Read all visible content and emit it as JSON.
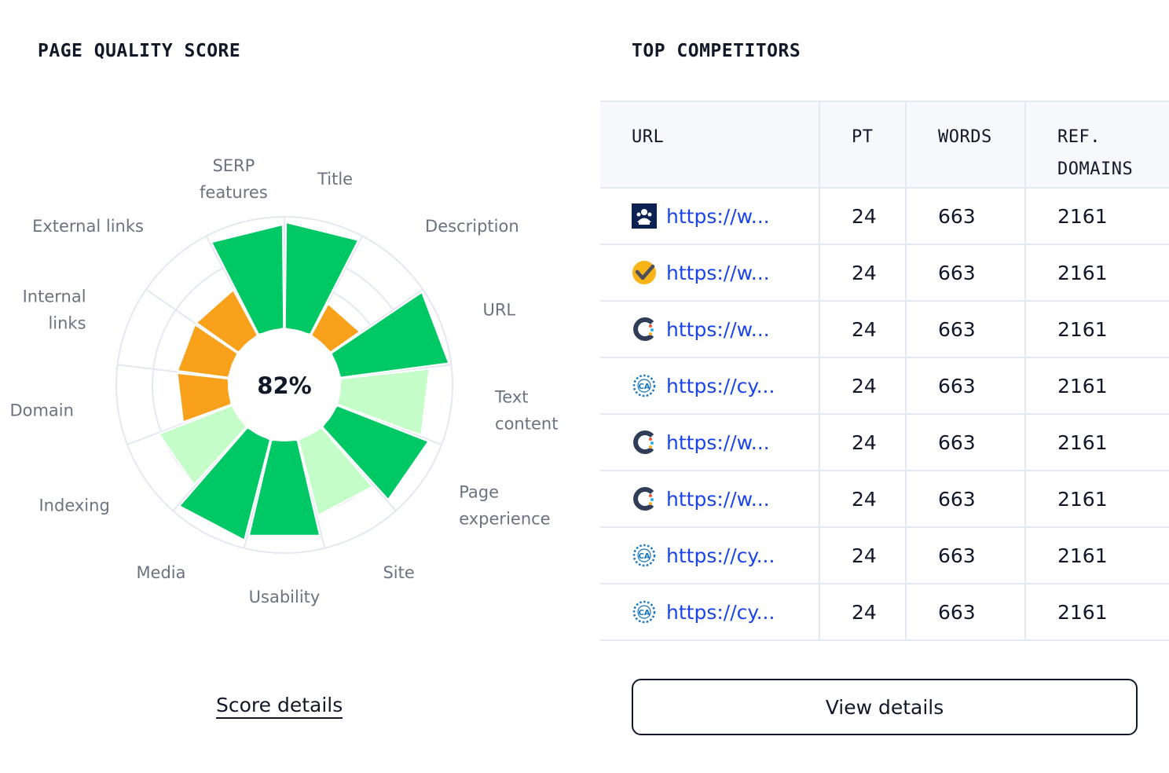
{
  "quality": {
    "title": "PAGE QUALITY SCORE",
    "score": "82%",
    "link": "Score details"
  },
  "chart_data": {
    "type": "polar-bar",
    "center_label": "82%",
    "colors": {
      "high": "#00c864",
      "medium": "#c4fdc7",
      "low": "#f9a11b",
      "grid": "#e3e8f1"
    },
    "categories": [
      {
        "label": [
          "Title"
        ],
        "value": 0.95,
        "level": "high"
      },
      {
        "label": [
          "Description"
        ],
        "value": 0.32,
        "level": "low"
      },
      {
        "label": [
          "URL"
        ],
        "value": 0.98,
        "level": "high"
      },
      {
        "label": [
          "Text",
          "content"
        ],
        "value": 0.8,
        "level": "medium"
      },
      {
        "label": [
          "Page",
          "experience"
        ],
        "value": 0.88,
        "level": "high"
      },
      {
        "label": [
          "Site"
        ],
        "value": 0.7,
        "level": "medium"
      },
      {
        "label": [
          "Usability"
        ],
        "value": 0.88,
        "level": "high"
      },
      {
        "label": [
          "Media"
        ],
        "value": 0.93,
        "level": "high"
      },
      {
        "label": [
          "Indexing"
        ],
        "value": 0.7,
        "level": "medium"
      },
      {
        "label": [
          "Domain"
        ],
        "value": 0.46,
        "level": "low"
      },
      {
        "label": [
          "Internal",
          "links"
        ],
        "value": 0.46,
        "level": "low"
      },
      {
        "label": [
          "External links"
        ],
        "value": 0.46,
        "level": "low"
      },
      {
        "label": [
          "SERP",
          "features"
        ],
        "value": 0.93,
        "level": "high"
      }
    ]
  },
  "competitors": {
    "title": "TOP COMPETITORS",
    "headers": {
      "url": "URL",
      "pt": "PT",
      "words": "WORDS",
      "ref_line1": "REF.",
      "ref_line2": "DOMAINS"
    },
    "rows": [
      {
        "icon": "crest-icon",
        "url": "https://w...",
        "pt": "24",
        "words": "663",
        "ref": "2161"
      },
      {
        "icon": "checkmark-badge-icon",
        "url": "https://w...",
        "pt": "24",
        "words": "663",
        "ref": "2161"
      },
      {
        "icon": "c-logo-icon",
        "url": "https://w...",
        "pt": "24",
        "words": "663",
        "ref": "2161"
      },
      {
        "icon": "ca-seal-icon",
        "url": "https://cy...",
        "pt": "24",
        "words": "663",
        "ref": "2161"
      },
      {
        "icon": "c-logo-icon",
        "url": "https://w...",
        "pt": "24",
        "words": "663",
        "ref": "2161"
      },
      {
        "icon": "c-logo-icon",
        "url": "https://w...",
        "pt": "24",
        "words": "663",
        "ref": "2161"
      },
      {
        "icon": "ca-seal-icon",
        "url": "https://cy...",
        "pt": "24",
        "words": "663",
        "ref": "2161"
      },
      {
        "icon": "ca-seal-icon",
        "url": "https://cy...",
        "pt": "24",
        "words": "663",
        "ref": "2161"
      }
    ],
    "button": "View details"
  }
}
